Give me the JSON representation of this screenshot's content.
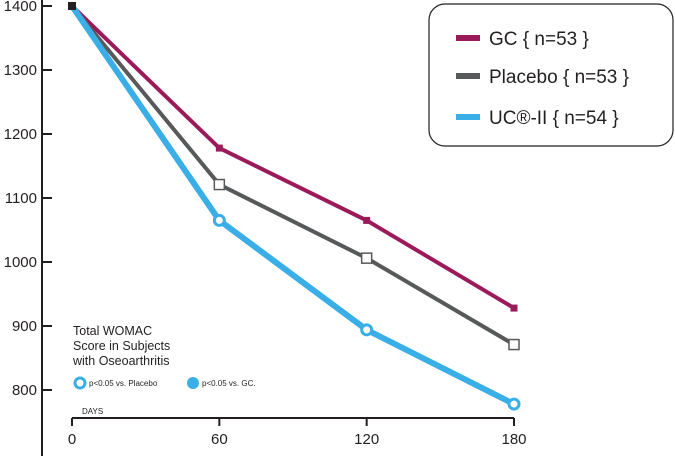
{
  "chart_data": {
    "type": "line",
    "x": [
      0,
      60,
      120,
      180
    ],
    "xticks": [
      "0",
      "60",
      "120",
      "180"
    ],
    "xlabel": "DAYS",
    "yticks": [
      "1400",
      "1300",
      "1200",
      "1100",
      "1000",
      "900",
      "800"
    ],
    "ylim": [
      760,
      1400
    ],
    "xlim": [
      0,
      180
    ],
    "series": [
      {
        "name": "GC { n=53 }",
        "color": "#9b1b5a",
        "marker": "square-small",
        "values": [
          1400,
          1178,
          1065,
          928
        ]
      },
      {
        "name": "Placebo { n=53 }",
        "color": "#58595b",
        "marker": "square-open",
        "values": [
          1400,
          1121,
          1006,
          871
        ]
      },
      {
        "name": "UC®-II { n=54 }",
        "color": "#3aaee6",
        "marker": "circle-open",
        "values": [
          1400,
          1065,
          894,
          778
        ]
      }
    ],
    "annotation": {
      "lines": [
        "Total WOMAC",
        "Score in Subjects",
        "with Oseoarthritis"
      ],
      "key_open": "p<0.05 vs. Placebo",
      "key_filled": "p<0.05 vs. GC."
    },
    "legend_position": "top-right"
  }
}
